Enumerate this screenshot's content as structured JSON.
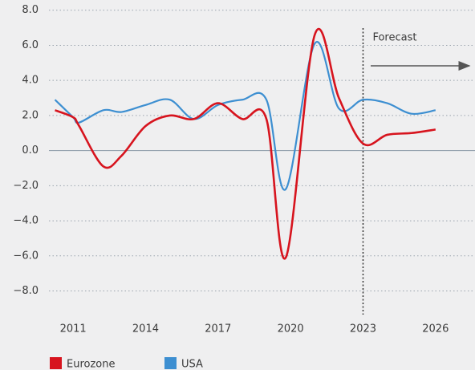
{
  "chart_data": {
    "type": "line",
    "x": [
      2010.25,
      2011,
      2011.25,
      2012.25,
      2013,
      2014,
      2015,
      2016,
      2017,
      2018,
      2019,
      2019.8,
      2021,
      2022,
      2023,
      2024,
      2025,
      2026
    ],
    "series": [
      {
        "name": "Eurozone",
        "color": "#d7141e",
        "values": [
          2.3,
          1.9,
          1.4,
          -0.9,
          -0.3,
          1.4,
          2.0,
          1.8,
          2.7,
          1.8,
          1.8,
          -6.1,
          6.6,
          3.0,
          0.4,
          0.9,
          1.0,
          1.2
        ]
      },
      {
        "name": "USA",
        "color": "#3d8fd1",
        "values": [
          2.9,
          1.9,
          1.6,
          2.3,
          2.2,
          2.6,
          2.9,
          1.8,
          2.6,
          2.9,
          2.9,
          -2.2,
          6.1,
          2.4,
          2.9,
          2.7,
          2.1,
          2.3
        ]
      }
    ],
    "xlim": [
      2010,
      2027.6
    ],
    "xticks": [
      2011,
      2014,
      2017,
      2020,
      2023,
      2026
    ],
    "ylim": [
      -8.8,
      8.4
    ],
    "yticks": [
      {
        "value": 8,
        "label": "8.0"
      },
      {
        "value": 6,
        "label": "6.0"
      },
      {
        "value": 4,
        "label": "4.0"
      },
      {
        "value": 2,
        "label": "2.0"
      },
      {
        "value": 0,
        "label": "0.0"
      },
      {
        "value": -2,
        "label": "−2.0"
      },
      {
        "value": -4,
        "label": "−4.0"
      },
      {
        "value": -6,
        "label": "−6.0"
      },
      {
        "value": -8,
        "label": "−8.0"
      }
    ],
    "grid": true,
    "annotation": {
      "text": "Forecast",
      "x": 2023
    }
  }
}
